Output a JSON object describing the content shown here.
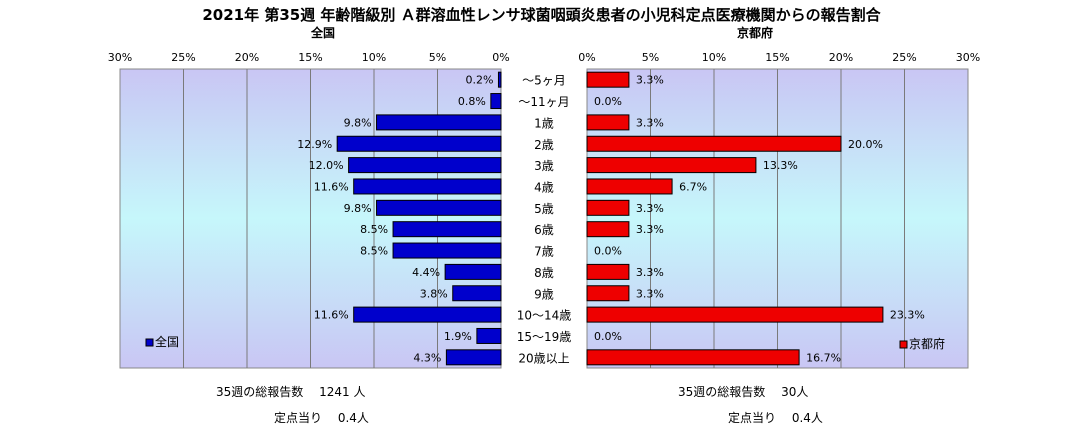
{
  "title": "2021年 第35週 年齢階級別 Ａ群溶血性レンサ球菌咽頭炎患者の小児科定点医療機関からの報告割合",
  "colors": {
    "national_bar": "#0000cc",
    "kyoto_bar": "#ee0000",
    "bar_border": "#000000",
    "plot_top": "#c9c6f4",
    "plot_middle": "#c6f7fb",
    "plot_bottom": "#c9c6f4",
    "gridline": "#7a7a7a"
  },
  "chart_data": {
    "type": "bar",
    "orientation": "horizontal-butterfly",
    "categories": [
      "～5ヶ月",
      "～11ヶ月",
      "1歳",
      "2歳",
      "3歳",
      "4歳",
      "5歳",
      "6歳",
      "7歳",
      "8歳",
      "9歳",
      "10～14歳",
      "15～19歳",
      "20歳以上"
    ],
    "xlim": [
      0,
      30
    ],
    "x_ticks": [
      "0%",
      "5%",
      "10%",
      "15%",
      "20%",
      "25%",
      "30%"
    ],
    "grid": true,
    "series": [
      {
        "name": "全国",
        "side": "left",
        "title": "全国",
        "legend": "全国",
        "values": [
          0.2,
          0.8,
          9.8,
          12.9,
          12.0,
          11.6,
          9.8,
          8.5,
          8.5,
          4.4,
          3.8,
          11.6,
          1.9,
          4.3
        ],
        "labels": [
          "0.2%",
          "0.8%",
          "9.8%",
          "12.9%",
          "12.0%",
          "11.6%",
          "9.8%",
          "8.5%",
          "8.5%",
          "4.4%",
          "3.8%",
          "11.6%",
          "1.9%",
          "4.3%"
        ]
      },
      {
        "name": "京都府",
        "side": "right",
        "title": "京都府",
        "legend": "京都府",
        "values": [
          3.3,
          0.0,
          3.3,
          20.0,
          13.3,
          6.7,
          3.3,
          3.3,
          0.0,
          3.3,
          3.3,
          23.3,
          0.0,
          16.7
        ],
        "labels": [
          "3.3%",
          "0.0%",
          "3.3%",
          "20.0%",
          "13.3%",
          "6.7%",
          "3.3%",
          "3.3%",
          "0.0%",
          "3.3%",
          "3.3%",
          "23.3%",
          "0.0%",
          "16.7%"
        ]
      }
    ]
  },
  "footer": {
    "national_total": "35週の総報告数　 1241 人",
    "national_per_site": "定点当り　 0.4人",
    "kyoto_total": "35週の総報告数　 30人",
    "kyoto_per_site": "定点当り　 0.4人"
  }
}
